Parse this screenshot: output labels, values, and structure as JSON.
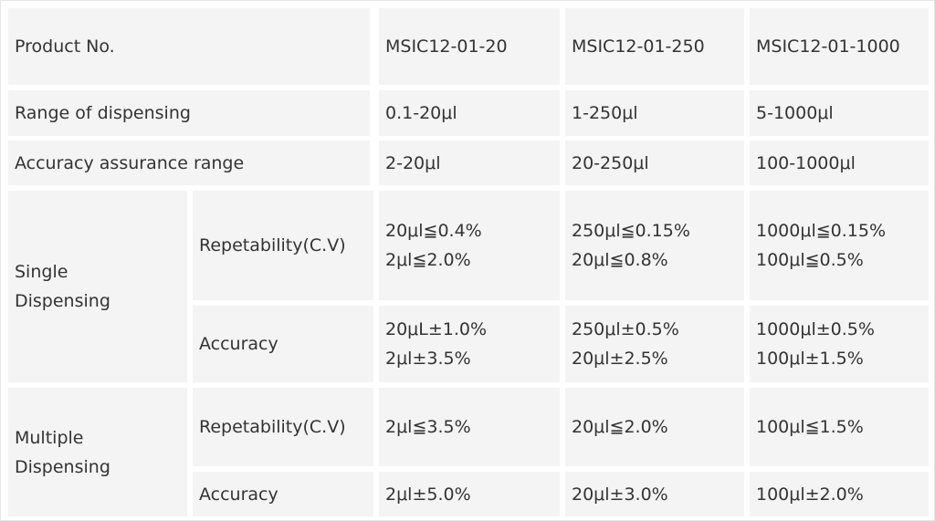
{
  "table": {
    "rows": [
      [
        "Product No.",
        "MSIC12-01-20",
        "MSIC12-01-250",
        "MSIC12-01-1000"
      ],
      [
        "Range of dispensing",
        "0.1-20μl",
        "1-250μl",
        "5-1000μl"
      ],
      [
        "Accuracy assurance range",
        "2-20μl",
        "20-250μl",
        "100-1000μl"
      ],
      [
        [
          "Single",
          "Dispensing"
        ],
        "Repetability(C.V)",
        [
          "20μl≦0.4%",
          "2μl≦2.0%"
        ],
        [
          "250μl≦0.15%",
          "20μl≦0.8%"
        ],
        [
          "1000μl≦0.15%",
          "100μl≦0.5%"
        ]
      ],
      [
        "Accuracy",
        [
          "20μL±1.0%",
          "2μl±3.5%"
        ],
        [
          "250μl±0.5%",
          "20μl±2.5%"
        ],
        [
          "1000μl±0.5%",
          "100μl±1.5%"
        ]
      ],
      [
        [
          "Multiple",
          "Dispensing"
        ],
        "Repetability(C.V)",
        "2μl≦3.5%",
        "20μl≦2.0%",
        "100μl≦1.5%"
      ],
      [
        "Accuracy",
        "2μl±5.0%",
        "20μl±3.0%",
        "100μl±2.0%"
      ]
    ]
  }
}
